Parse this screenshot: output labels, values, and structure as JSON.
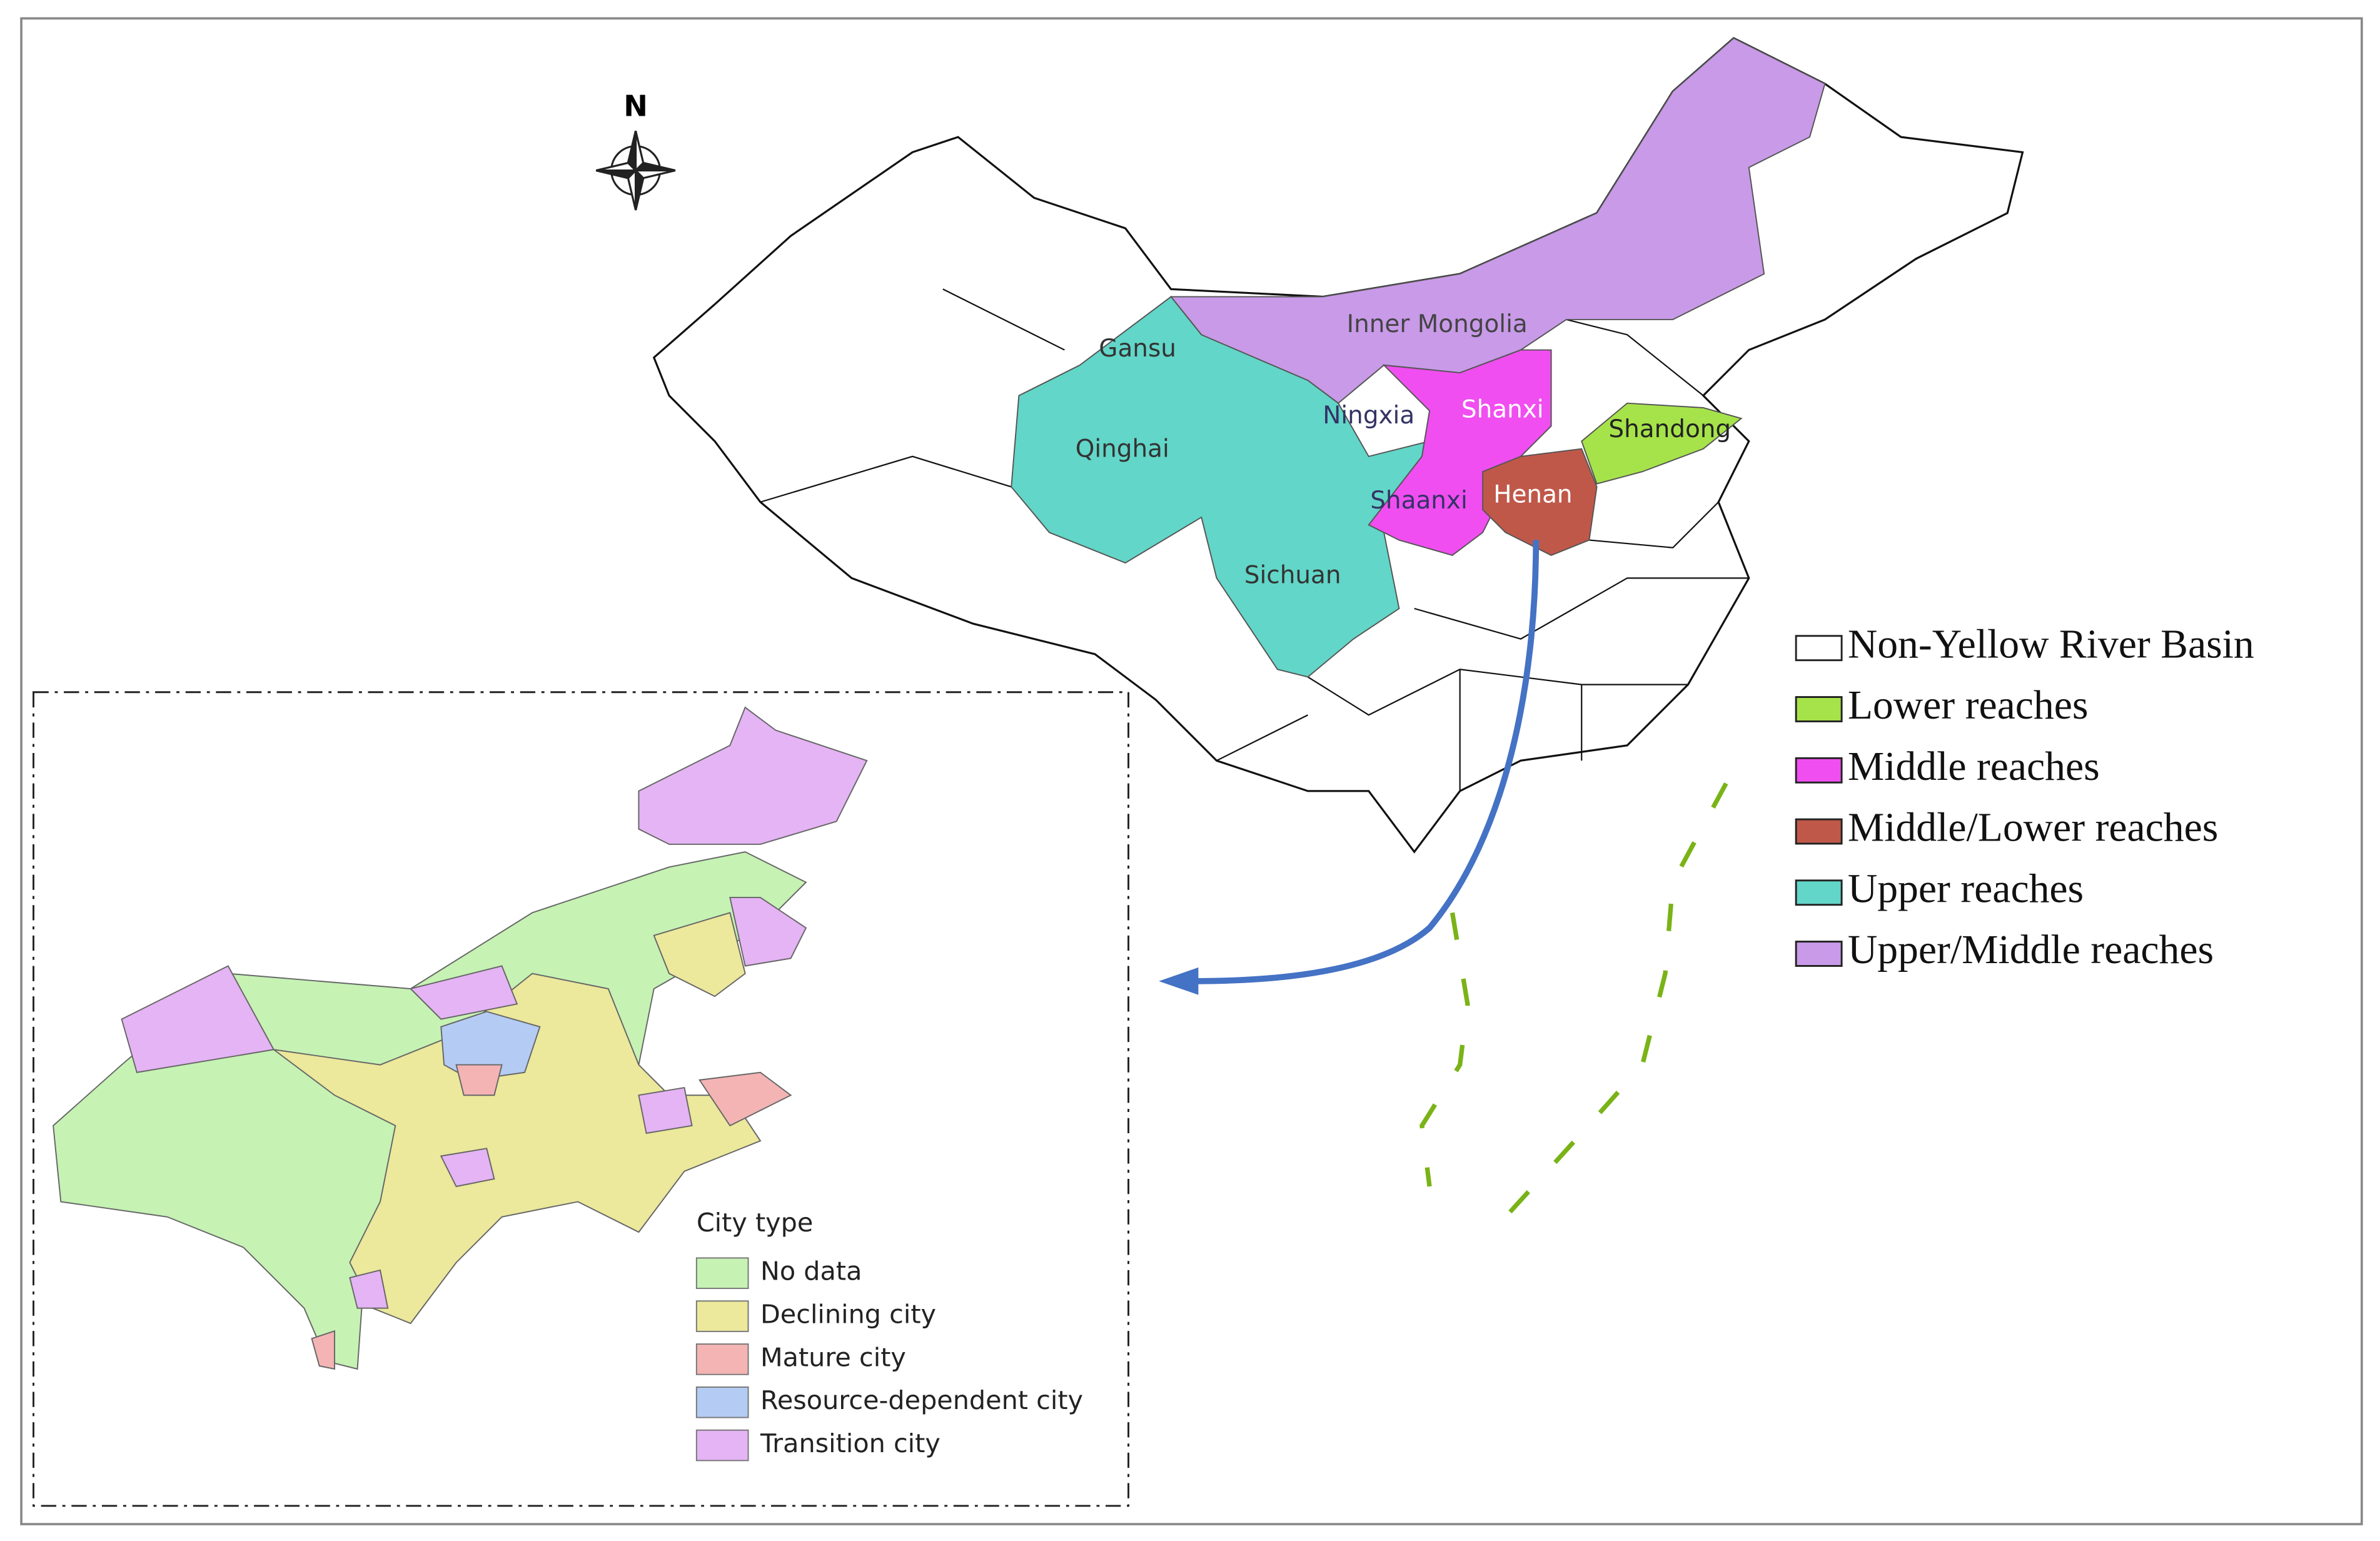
{
  "compass": "N",
  "provinces": [
    "Inner Mongolia",
    "Gansu",
    "Ningxia",
    "Shanxi",
    "Shandong",
    "Qinghai",
    "Shaanxi",
    "Henan",
    "Sichuan"
  ],
  "basin_legend": {
    "items": [
      {
        "label": "Non-Yellow River Basin",
        "color": "#ffffff"
      },
      {
        "label": "Lower reaches",
        "color": "#a6e34a"
      },
      {
        "label": "Middle reaches",
        "color": "#f04ef0"
      },
      {
        "label": "Middle/Lower reaches",
        "color": "#c0584a"
      },
      {
        "label": "Upper reaches",
        "color": "#62d6c8"
      },
      {
        "label": "Upper/Middle reaches",
        "color": "#c89ae8"
      }
    ]
  },
  "inset_legend": {
    "title": "City type",
    "items": [
      {
        "label": "No data",
        "color": "#c6f2b4"
      },
      {
        "label": "Declining city",
        "color": "#ece89c"
      },
      {
        "label": "Mature city",
        "color": "#f4b4b4"
      },
      {
        "label": "Resource-dependent city",
        "color": "#b4ccf4"
      },
      {
        "label": "Transition city",
        "color": "#e4b4f4"
      }
    ]
  }
}
